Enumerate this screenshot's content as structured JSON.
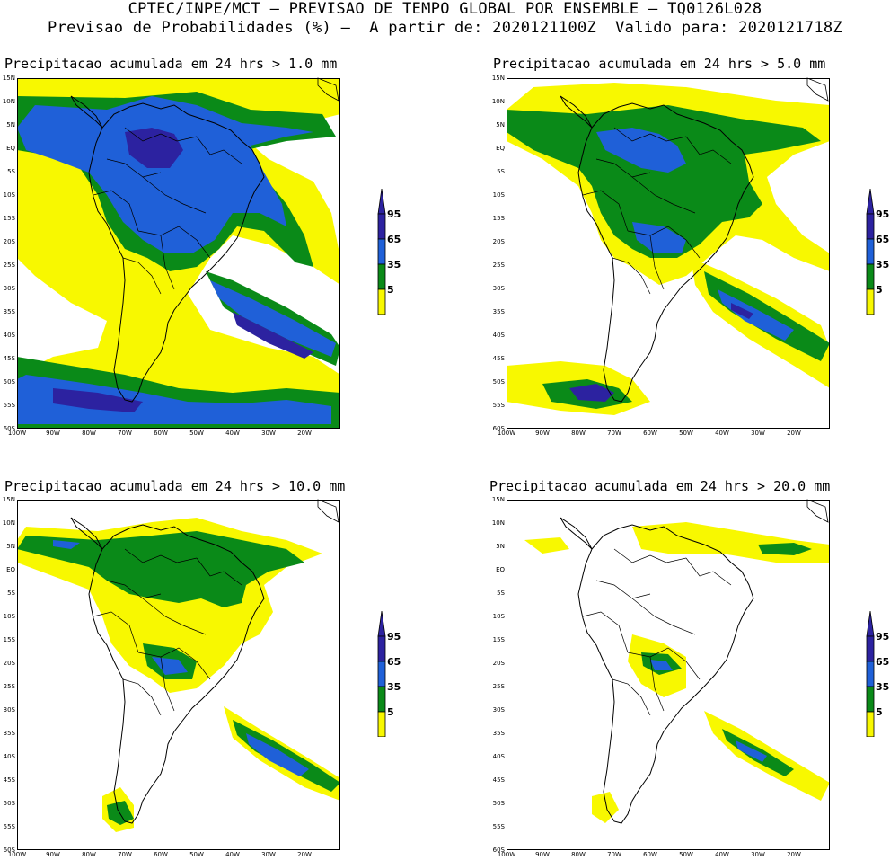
{
  "header": {
    "line1": "CPTEC/INPE/MCT — PREVISAO DE TEMPO GLOBAL POR ENSEMBLE — TQ0126L028",
    "line2": "Previsao de Probabilidades (%) —  A partir de: 2020121100Z  Valido para: 2020121718Z"
  },
  "colors": {
    "lvl5": "#f8f800",
    "lvl35": "#0a8a18",
    "lvl65": "#1f60d8",
    "lvl95": "#2c22a0",
    "land": "#000000",
    "bg": "#ffffff"
  },
  "axes": {
    "lat_labels": [
      "15N",
      "10N",
      "5N",
      "EQ",
      "5S",
      "10S",
      "15S",
      "20S",
      "25S",
      "30S",
      "35S",
      "40S",
      "45S",
      "50S",
      "55S",
      "60S"
    ],
    "lon_labels": [
      "100W",
      "90W",
      "80W",
      "70W",
      "60W",
      "50W",
      "40W",
      "30W",
      "20W"
    ]
  },
  "colorbar": {
    "levels": [
      "95",
      "65",
      "35",
      "5"
    ],
    "unit": "%"
  },
  "panels": [
    {
      "title": "Precipitacao acumulada em 24 hrs > 1.0 mm",
      "threshold_mm": 1.0
    },
    {
      "title": "Precipitacao acumulada em 24 hrs > 5.0 mm",
      "threshold_mm": 5.0
    },
    {
      "title": "Precipitacao acumulada em 24 hrs > 10.0 mm",
      "threshold_mm": 10.0
    },
    {
      "title": "Precipitacao acumulada em 24 hrs > 20.0 mm",
      "threshold_mm": 20.0
    }
  ]
}
